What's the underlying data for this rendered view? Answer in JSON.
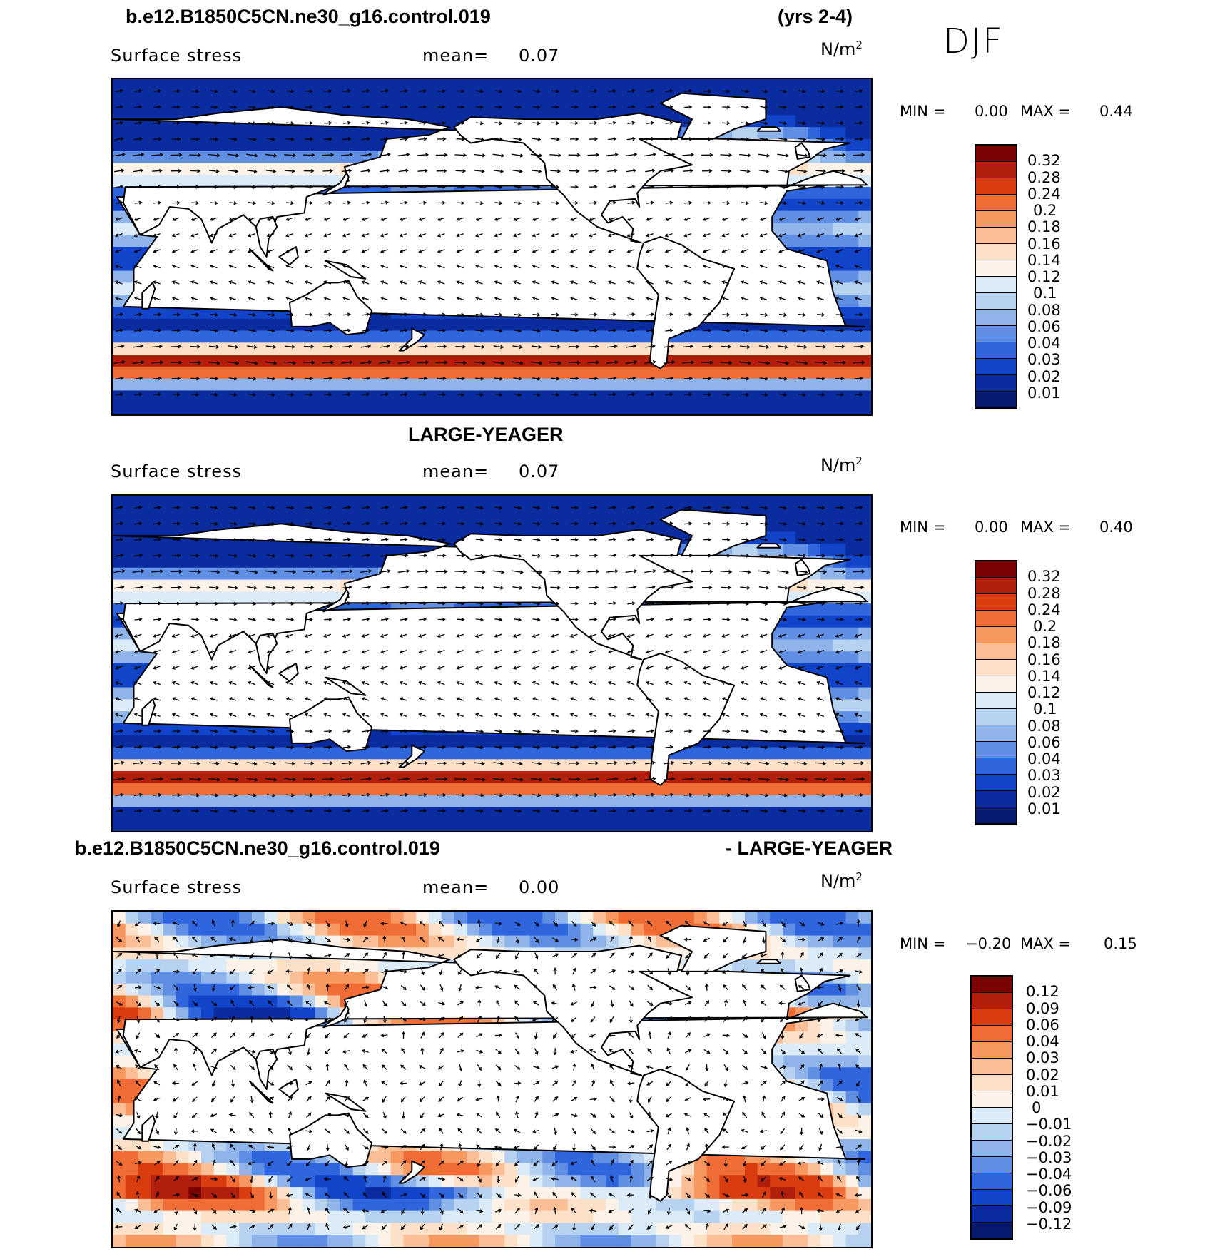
{
  "season": "DJF",
  "panels": [
    {
      "title_left": "b.e12.B1850C5CN.ne30_g16.control.019",
      "title_right": "(yrs 2-4)",
      "variable": "Surface stress",
      "mean_label": "mean=",
      "mean_value": "0.07",
      "units": "N/m",
      "units_sup": "2",
      "min_label": "MIN =",
      "min_value": "0.00",
      "max_label": "MAX =",
      "max_value": "0.44",
      "colorbar": {
        "ticks": [
          "0.32",
          "0.28",
          "0.24",
          "0.2",
          "0.18",
          "0.16",
          "0.14",
          "0.12",
          "0.1",
          "0.08",
          "0.06",
          "0.04",
          "0.03",
          "0.02",
          "0.01"
        ],
        "colors": [
          "#7a0403",
          "#b11f0c",
          "#d93d0f",
          "#ef6d34",
          "#f79861",
          "#fbbf97",
          "#fde0c8",
          "#fdf2e8",
          "#dcebf8",
          "#b7d2f1",
          "#8fb4ea",
          "#5f8ee3",
          "#2f65dd",
          "#1144c8",
          "#0b2c9e",
          "#071a70"
        ]
      },
      "map_style": "mean"
    },
    {
      "title_center": "LARGE-YEAGER",
      "variable": "Surface stress",
      "mean_label": "mean=",
      "mean_value": "0.07",
      "units": "N/m",
      "units_sup": "2",
      "min_label": "MIN =",
      "min_value": "0.00",
      "max_label": "MAX =",
      "max_value": "0.40",
      "colorbar": {
        "ticks": [
          "0.32",
          "0.28",
          "0.24",
          "0.2",
          "0.18",
          "0.16",
          "0.14",
          "0.12",
          "0.1",
          "0.08",
          "0.06",
          "0.04",
          "0.03",
          "0.02",
          "0.01"
        ],
        "colors": [
          "#7a0403",
          "#b11f0c",
          "#d93d0f",
          "#ef6d34",
          "#f79861",
          "#fbbf97",
          "#fde0c8",
          "#fdf2e8",
          "#dcebf8",
          "#b7d2f1",
          "#8fb4ea",
          "#5f8ee3",
          "#2f65dd",
          "#1144c8",
          "#0b2c9e",
          "#071a70"
        ]
      },
      "map_style": "mean"
    },
    {
      "title_left": "b.e12.B1850C5CN.ne30_g16.control.019",
      "title_right": "- LARGE-YEAGER",
      "variable": "Surface stress",
      "mean_label": "mean=",
      "mean_value": "0.00",
      "units": "N/m",
      "units_sup": "2",
      "min_label": "MIN =",
      "min_value": "−0.20",
      "max_label": "MAX =",
      "max_value": "0.15",
      "colorbar": {
        "ticks": [
          "0.12",
          "0.09",
          "0.06",
          "0.04",
          "0.03",
          "0.02",
          "0.01",
          "0",
          "−0.01",
          "−0.02",
          "−0.03",
          "−0.04",
          "−0.06",
          "−0.09",
          "−0.12"
        ],
        "colors": [
          "#7a0403",
          "#b11f0c",
          "#d93d0f",
          "#ef6d34",
          "#f79861",
          "#fbbf97",
          "#fde0c8",
          "#fdf2e8",
          "#dcebf8",
          "#b7d2f1",
          "#8fb4ea",
          "#5f8ee3",
          "#2f65dd",
          "#1144c8",
          "#0b2c9e",
          "#071a70"
        ]
      },
      "map_style": "diff"
    }
  ]
}
